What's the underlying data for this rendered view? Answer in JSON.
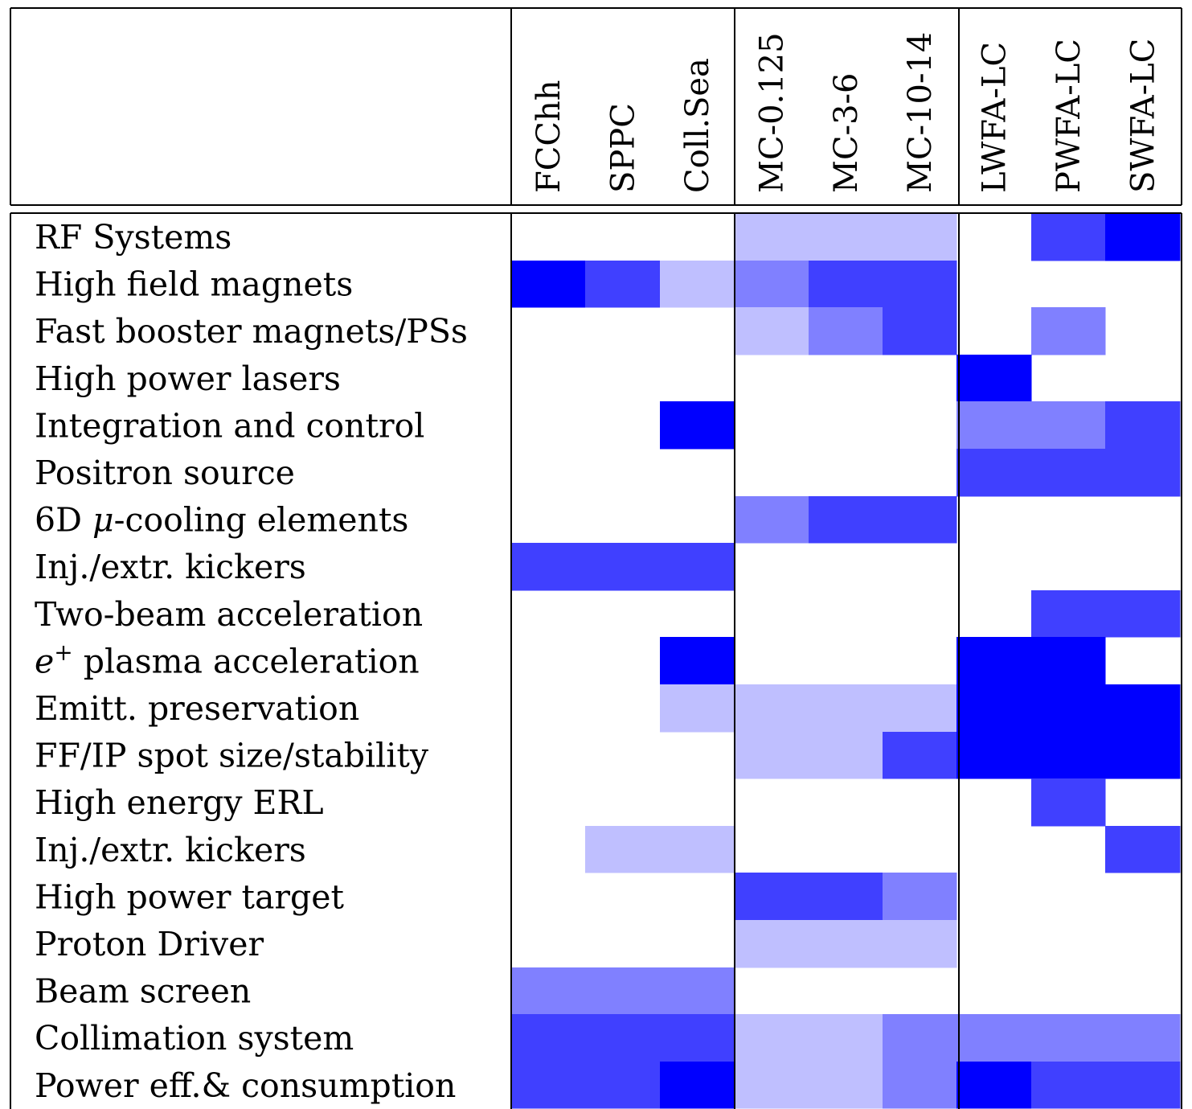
{
  "chart_data": {
    "type": "heatmap",
    "title": "",
    "xlabel": "",
    "ylabel": "",
    "column_groups": [
      {
        "columns": [
          "FCChh",
          "SPPC",
          "Coll.Sea"
        ]
      },
      {
        "columns": [
          "MC-0.125",
          "MC-3-6",
          "MC-10-14"
        ]
      },
      {
        "columns": [
          "LWFA-LC",
          "PWFA-LC",
          "SWFA-LC"
        ]
      }
    ],
    "columns": [
      "FCChh",
      "SPPC",
      "Coll.Sea",
      "MC-0.125",
      "MC-3-6",
      "MC-10-14",
      "LWFA-LC",
      "PWFA-LC",
      "SWFA-LC"
    ],
    "rows": [
      "RF Systems",
      "High field magnets",
      "Fast booster magnets/PSs",
      "High power lasers",
      "Integration and control",
      "Positron source",
      "6D μ-cooling elements",
      "Inj./extr. kickers",
      "Two-beam acceleration",
      "e+ plasma acceleration",
      "Emitt. preservation",
      "FF/IP spot size/stability",
      "High energy ERL",
      "Inj./extr. kickers",
      "High power target",
      "Proton Driver",
      "Beam screen",
      "Collimation system",
      "Power eff.& consumption"
    ],
    "intensity_scale": [
      0,
      1,
      2,
      3,
      4
    ],
    "colors": [
      "#ffffff",
      "#bfbfff",
      "#8080ff",
      "#4040ff",
      "#0000ff"
    ],
    "values": [
      [
        0,
        0,
        0,
        1,
        1,
        1,
        0,
        3,
        4
      ],
      [
        4,
        3,
        1,
        2,
        3,
        3,
        0,
        0,
        0
      ],
      [
        0,
        0,
        0,
        1,
        2,
        3,
        0,
        2,
        0
      ],
      [
        0,
        0,
        0,
        0,
        0,
        0,
        4,
        0,
        0
      ],
      [
        0,
        0,
        4,
        0,
        0,
        0,
        2,
        2,
        3
      ],
      [
        0,
        0,
        0,
        0,
        0,
        0,
        3,
        3,
        3
      ],
      [
        0,
        0,
        0,
        2,
        3,
        3,
        0,
        0,
        0
      ],
      [
        3,
        3,
        3,
        0,
        0,
        0,
        0,
        0,
        0
      ],
      [
        0,
        0,
        0,
        0,
        0,
        0,
        0,
        3,
        3
      ],
      [
        0,
        0,
        4,
        0,
        0,
        0,
        4,
        4,
        0
      ],
      [
        0,
        0,
        1,
        1,
        1,
        1,
        4,
        4,
        4
      ],
      [
        0,
        0,
        0,
        1,
        1,
        3,
        4,
        4,
        4
      ],
      [
        0,
        0,
        0,
        0,
        0,
        0,
        0,
        3,
        0
      ],
      [
        0,
        1,
        1,
        0,
        0,
        0,
        0,
        0,
        3
      ],
      [
        0,
        0,
        0,
        3,
        3,
        2,
        0,
        0,
        0
      ],
      [
        0,
        0,
        0,
        1,
        1,
        1,
        0,
        0,
        0
      ],
      [
        2,
        2,
        2,
        0,
        0,
        0,
        0,
        0,
        0
      ],
      [
        3,
        3,
        3,
        1,
        1,
        2,
        2,
        2,
        2
      ],
      [
        3,
        3,
        4,
        1,
        1,
        2,
        4,
        3,
        3
      ]
    ],
    "grid": false,
    "legend": "none"
  }
}
